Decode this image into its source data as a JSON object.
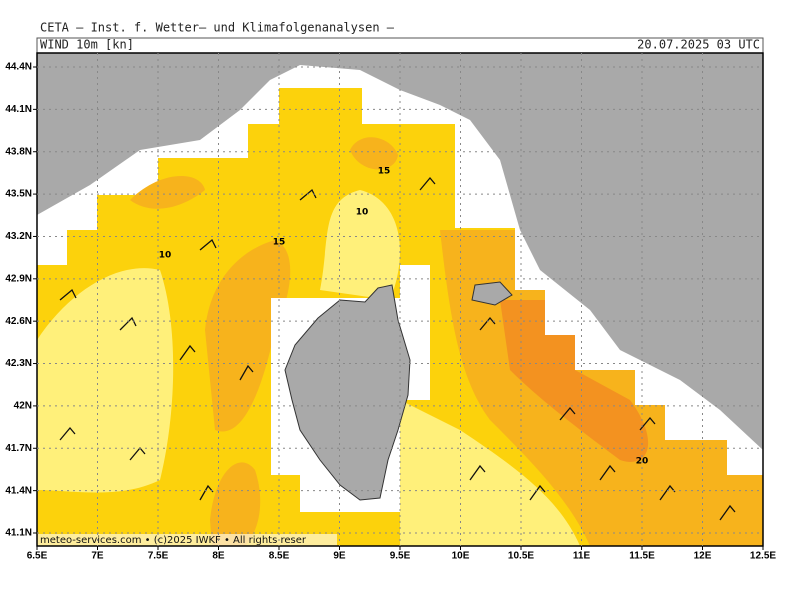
{
  "header": {
    "title": "CETA — Inst. f. Wetter— und Klimafolgenanalysen —",
    "product": "WIND 10m [kn]",
    "valid_time": "20.07.2025 03 UTC"
  },
  "map": {
    "latitude_labels": [
      "44.4N",
      "44.1N",
      "43.8N",
      "43.5N",
      "43.2N",
      "42.9N",
      "42.6N",
      "42.3N",
      "42N",
      "41.7N",
      "41.4N",
      "41.1N"
    ],
    "longitude_labels": [
      "6.5E",
      "7E",
      "7.5E",
      "8E",
      "8.5E",
      "9E",
      "9.5E",
      "10E",
      "10.5E",
      "11E",
      "11.5E",
      "12E",
      "12.5E"
    ],
    "contour_labels": [
      "15",
      "10",
      "15",
      "10",
      "20"
    ],
    "footer": "meteo-services.com • (c)2025 IWKF • All rights reser"
  }
}
